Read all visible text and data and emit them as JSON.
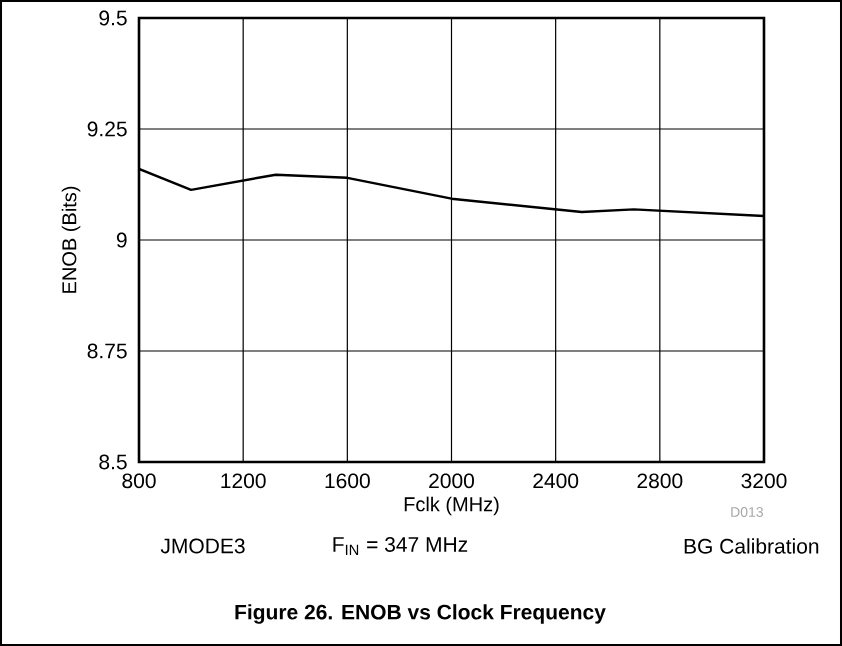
{
  "chart_data": {
    "type": "line",
    "title": "Figure 26. ENOB vs Clock Frequency",
    "xlabel": "Fclk (MHz)",
    "ylabel": "ENOB (Bits)",
    "x": [
      800,
      1000,
      1325,
      1600,
      2000,
      2500,
      2700,
      3200
    ],
    "series": [
      {
        "color": "#000000",
        "values": [
          9.16,
          9.113,
          9.147,
          9.14,
          9.093,
          9.063,
          9.069,
          9.054
        ]
      }
    ],
    "xlim": [
      800,
      3200
    ],
    "ylim": [
      8.5,
      9.5
    ],
    "xticks": [
      800,
      1200,
      1600,
      2000,
      2400,
      2800,
      3200
    ],
    "yticks": [
      8.5,
      8.75,
      9,
      9.25,
      9.5
    ],
    "grid": true,
    "marker": "none",
    "line_style": "solid",
    "annotations": [
      "D013",
      "JMODE3",
      "F$_{IN}$ = 347 MHz",
      "BG Calibration"
    ]
  }
}
